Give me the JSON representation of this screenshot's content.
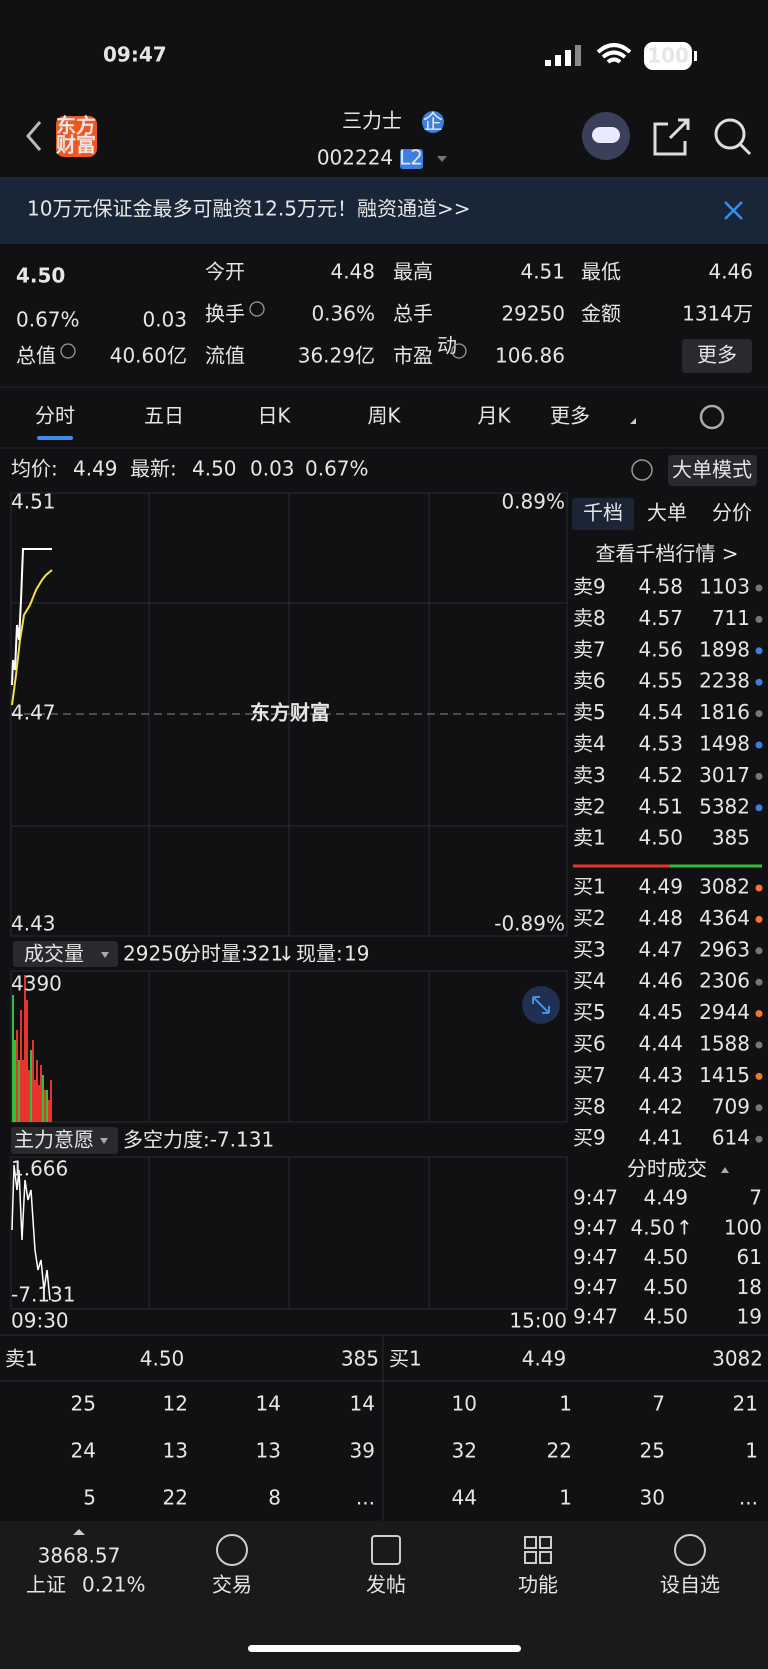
{
  "status_bar": {
    "time": "09:47",
    "battery": "100"
  },
  "header": {
    "logo_line1": "东方",
    "logo_line2": "财富",
    "name": "三力士",
    "badge": "企",
    "code": "002224",
    "level": "L2"
  },
  "banner": {
    "text": "10万元保证金最多可融资12.5万元！融资通道>>"
  },
  "quote": {
    "price": "4.50",
    "change_pct": "0.67%",
    "change": "0.03",
    "more": "更多",
    "stats": [
      {
        "label": "今开",
        "value": "4.48"
      },
      {
        "label": "最高",
        "value": "4.51"
      },
      {
        "label": "最低",
        "value": "4.46"
      },
      {
        "label": "换手",
        "value": "0.36%"
      },
      {
        "label": "总手",
        "value": "29250"
      },
      {
        "label": "金额",
        "value": "1314万"
      },
      {
        "label": "总值",
        "value": "40.60亿"
      },
      {
        "label": "流值",
        "value": "36.29亿"
      },
      {
        "label": "市盈",
        "sup": "动",
        "value": "106.86"
      }
    ]
  },
  "tabs": [
    "分时",
    "五日",
    "日K",
    "周K",
    "月K",
    "更多"
  ],
  "avg_row": {
    "avg_label": "均价:",
    "avg": "4.49",
    "latest_label": "最新:",
    "latest": "4.50",
    "change": "0.03",
    "pct": "0.67%",
    "mode": "大单模式"
  },
  "chart": {
    "y_top": "4.51",
    "y_mid": "4.47",
    "y_bottom": "4.43",
    "pct_top": "0.89%",
    "pct_bottom": "-0.89%",
    "watermark": "东方财富"
  },
  "volume": {
    "label": "成交量",
    "total": "29250",
    "minute_label": "分时量:",
    "minute": "321",
    "arrow": "↓",
    "now_label": "现量:",
    "now": "19",
    "max": "4390"
  },
  "intent": {
    "label": "主力意愿",
    "strength": "多空力度:-7.131",
    "top": "1.666",
    "bottom": "-7.131",
    "time_start": "09:30",
    "time_end": "15:00"
  },
  "order_book": {
    "tabs": [
      "千档",
      "大单",
      "分价"
    ],
    "link": "查看千档行情 >",
    "asks": [
      {
        "label": "卖9",
        "price": "4.58",
        "volume": "1103",
        "dot": "#777777"
      },
      {
        "label": "卖8",
        "price": "4.57",
        "volume": "711",
        "dot": "#777777"
      },
      {
        "label": "卖7",
        "price": "4.56",
        "volume": "1898",
        "dot": "#3d7fe0"
      },
      {
        "label": "卖6",
        "price": "4.55",
        "volume": "2238",
        "dot": "#3d7fe0"
      },
      {
        "label": "卖5",
        "price": "4.54",
        "volume": "1816",
        "dot": "#777777"
      },
      {
        "label": "卖4",
        "price": "4.53",
        "volume": "1498",
        "dot": "#3d7fe0"
      },
      {
        "label": "卖3",
        "price": "4.52",
        "volume": "3017",
        "dot": "#777777"
      },
      {
        "label": "卖2",
        "price": "4.51",
        "volume": "5382",
        "dot": "#3d7fe0"
      },
      {
        "label": "卖1",
        "price": "4.50",
        "volume": "385"
      }
    ],
    "bids": [
      {
        "label": "买1",
        "price": "4.49",
        "volume": "3082",
        "dot": "#f07828"
      },
      {
        "label": "买2",
        "price": "4.48",
        "volume": "4364",
        "dot": "#f07828"
      },
      {
        "label": "买3",
        "price": "4.47",
        "volume": "2963",
        "dot": "#777777"
      },
      {
        "label": "买4",
        "price": "4.46",
        "volume": "2306",
        "dot": "#777777"
      },
      {
        "label": "买5",
        "price": "4.45",
        "volume": "2944",
        "dot": "#f07828"
      },
      {
        "label": "买6",
        "price": "4.44",
        "volume": "1588",
        "dot": "#777777"
      },
      {
        "label": "买7",
        "price": "4.43",
        "volume": "1415",
        "dot": "#f07828"
      },
      {
        "label": "买8",
        "price": "4.42",
        "volume": "709",
        "dot": "#777777"
      },
      {
        "label": "买9",
        "price": "4.41",
        "volume": "614",
        "dot": "#777777"
      }
    ]
  },
  "trades": {
    "title": "分时成交",
    "rows": [
      {
        "time": "9:47",
        "price": "4.49",
        "volume": "7",
        "color": "#2fc13a"
      },
      {
        "time": "9:47",
        "price": "4.50",
        "arrow": "↑",
        "volume": "100",
        "color": "#e8332f"
      },
      {
        "time": "9:47",
        "price": "4.50",
        "volume": "61",
        "color": "#e8332f"
      },
      {
        "time": "9:47",
        "price": "4.50",
        "volume": "18",
        "color": "#e8332f"
      },
      {
        "time": "9:47",
        "price": "4.50",
        "volume": "19",
        "color": "#e8332f"
      }
    ]
  },
  "queue": {
    "ask": {
      "label": "卖1",
      "price": "4.50",
      "volume": "385",
      "items": [
        "25",
        "12",
        "14",
        "14",
        "24",
        "13",
        "13",
        "39",
        "5",
        "22",
        "8",
        "..."
      ]
    },
    "bid": {
      "label": "买1",
      "price": "4.49",
      "volume": "3082",
      "items": [
        "10",
        "1",
        "7",
        "21",
        "32",
        "22",
        "25",
        "1",
        "44",
        "1",
        "30",
        "..."
      ]
    }
  },
  "bottom_nav": {
    "index_value": "3868.57",
    "index_name": "上证",
    "index_pct": "0.21%",
    "items": [
      "交易",
      "发帖",
      "功能",
      "设自选"
    ]
  }
}
